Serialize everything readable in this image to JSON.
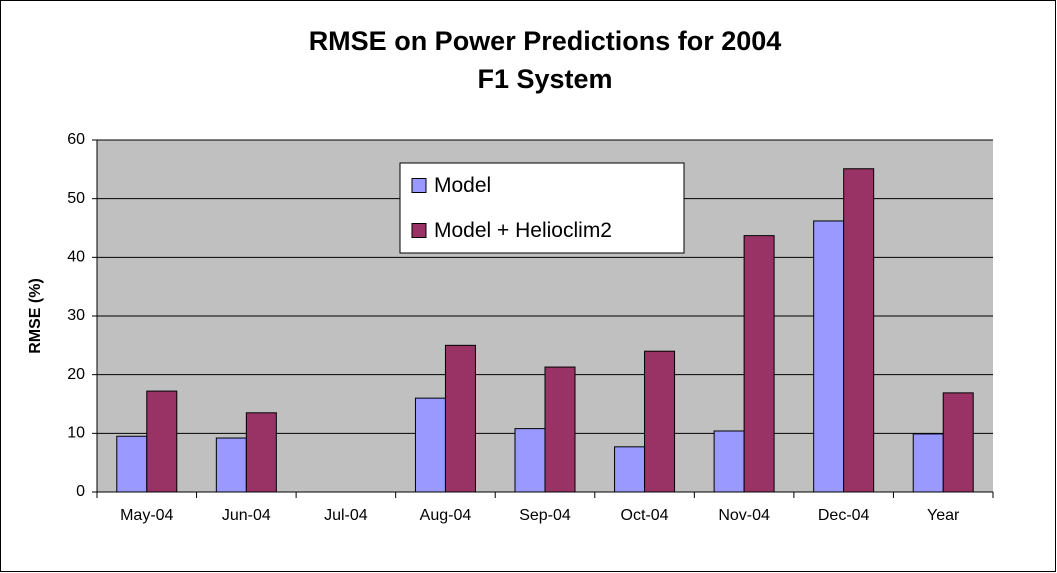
{
  "chart_data": {
    "type": "bar",
    "title": "RMSE on Power Predictions for 2004",
    "subtitle": "F1 System",
    "y_label": "RMSE (%)",
    "categories": [
      "May-04",
      "Jun-04",
      "Jul-04",
      "Aug-04",
      "Sep-04",
      "Oct-04",
      "Nov-04",
      "Dec-04",
      "Year"
    ],
    "series": [
      {
        "name": "Model",
        "color": "#9999ff",
        "values": [
          9.5,
          9.2,
          null,
          16,
          10.8,
          7.7,
          10.4,
          46.2,
          9.9
        ]
      },
      {
        "name": "Model + Helioclim2",
        "color": "#993366",
        "values": [
          17.2,
          13.5,
          null,
          25,
          21.3,
          24,
          43.7,
          55.1,
          16.9
        ]
      }
    ],
    "ylim": [
      0,
      60
    ],
    "yticks": [
      0,
      10,
      20,
      30,
      40,
      50,
      60
    ],
    "grid": true,
    "plot_background": "#c0c0c0"
  }
}
